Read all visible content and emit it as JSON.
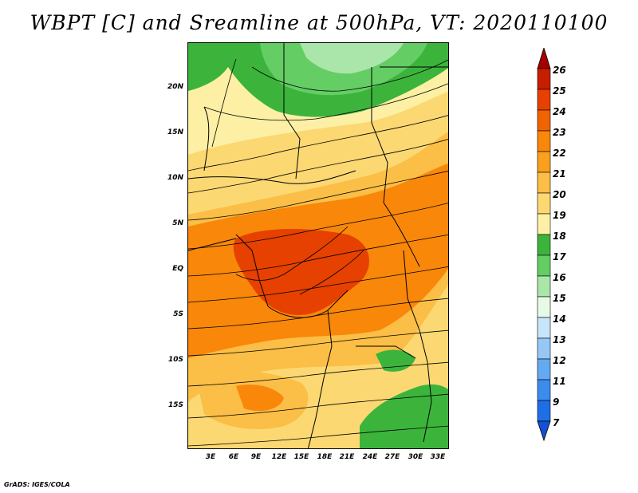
{
  "map": {
    "title": "WBPT [C] and Sreamline at 500hPa, VT: 2020110100",
    "variable": "Wet-bulb potential temperature",
    "unit": "C",
    "level": "500hPa",
    "valid_time": "2020110100",
    "lat_labels": [
      "20N",
      "15N",
      "10N",
      "5N",
      "EQ",
      "5S",
      "10S",
      "15S"
    ],
    "lon_labels": [
      "3E",
      "6E",
      "9E",
      "12E",
      "15E",
      "18E",
      "21E",
      "24E",
      "27E",
      "30E",
      "33E"
    ],
    "colorbar": {
      "levels": [
        "26",
        "25",
        "24",
        "23",
        "22",
        "21",
        "20",
        "19",
        "18",
        "17",
        "16",
        "15",
        "14",
        "13",
        "12",
        "11",
        "9",
        "7"
      ],
      "colors": [
        "#a50000",
        "#c81e00",
        "#e64100",
        "#f06400",
        "#f8870a",
        "#faa01e",
        "#fbbe46",
        "#fcd873",
        "#fdf0a5",
        "#3cb43c",
        "#64cd64",
        "#aae6aa",
        "#e6fae6",
        "#c8e6fa",
        "#96c8f5",
        "#64aaf0",
        "#3c8cf0",
        "#1e6ee6",
        "#1450d2"
      ]
    },
    "credit": "GrADS: IGES/COLA"
  }
}
